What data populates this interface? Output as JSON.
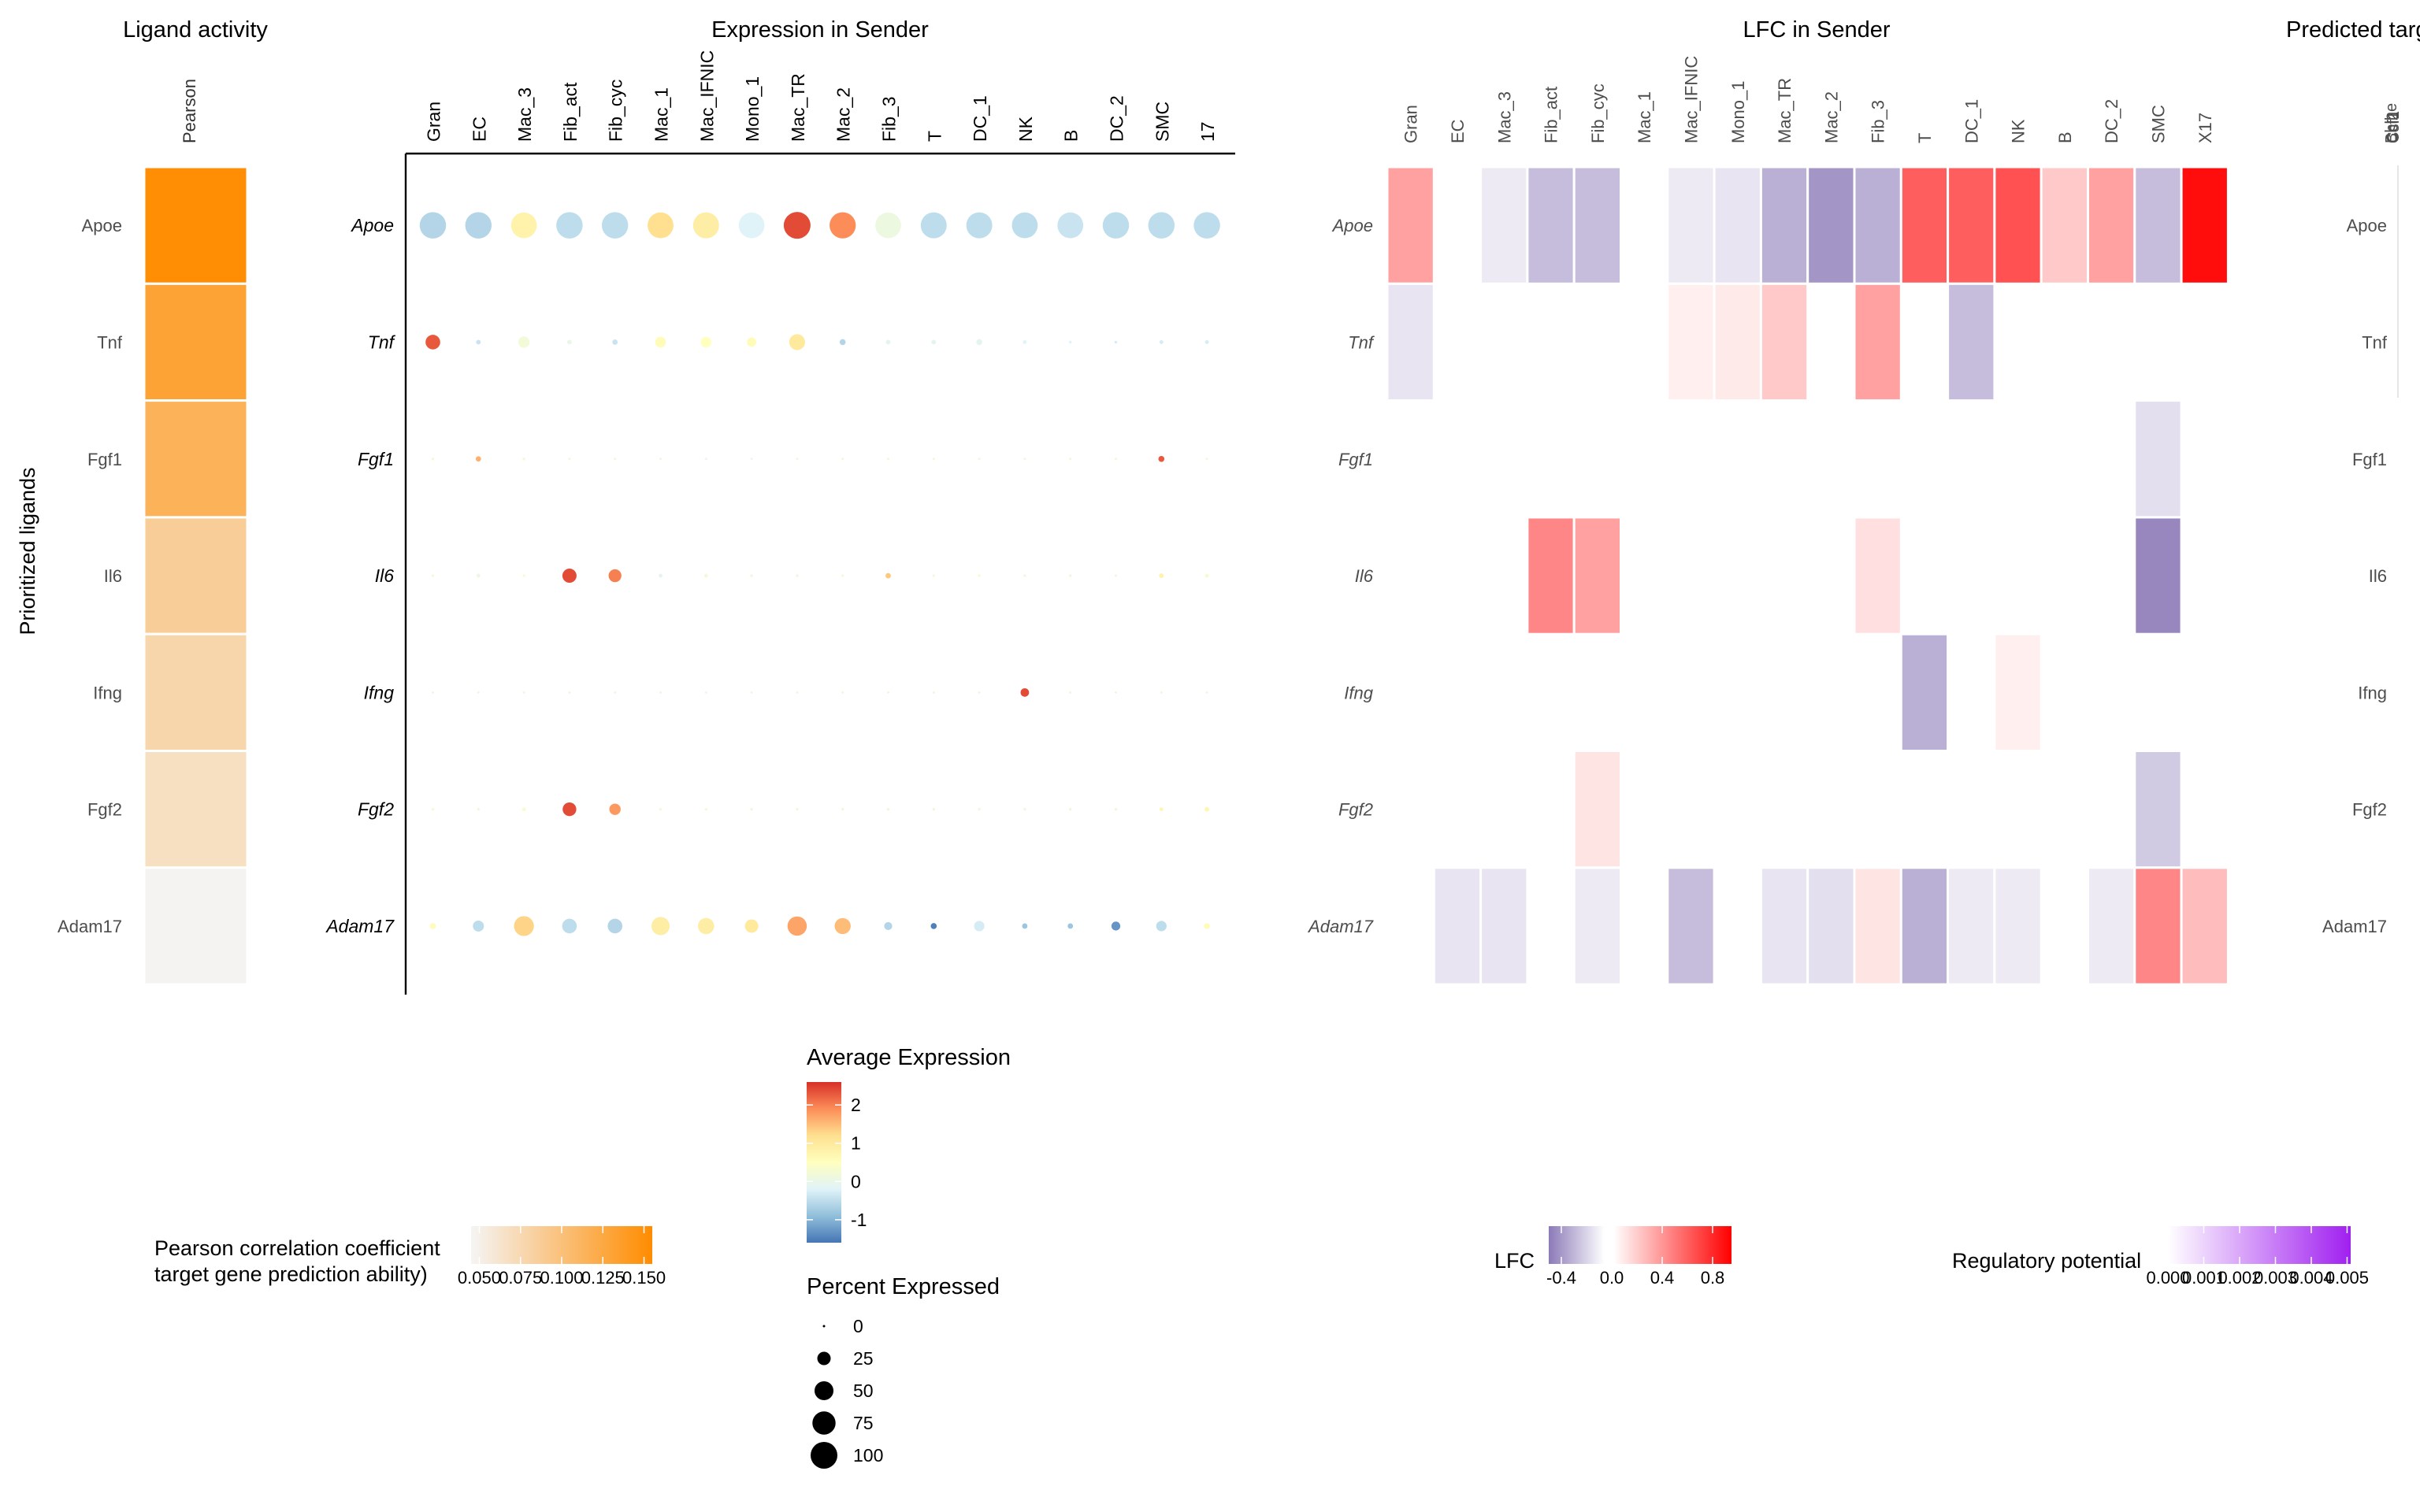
{
  "chart_data": [
    {
      "type": "heatmap",
      "title": "Ligand activity",
      "ylabel": "Prioritized ligands",
      "columns": [
        "Pearson"
      ],
      "rows": [
        "Apoe",
        "Tnf",
        "Fgf1",
        "Il6",
        "Ifng",
        "Fgf2",
        "Adam17"
      ],
      "values": [
        0.153,
        0.131,
        0.115,
        0.087,
        0.078,
        0.068,
        0.047
      ],
      "legend": {
        "title_lines": [
          "Pearson correlation coefficient",
          "target gene prediction ability)"
        ],
        "ticks": [
          "0.050",
          "0.075",
          "0.100",
          "0.125",
          "0.150"
        ],
        "tick_values": [
          0.05,
          0.075,
          0.1,
          0.125,
          0.15
        ],
        "range": [
          0.045,
          0.155
        ],
        "colors": [
          "#f5f5f5",
          "#ff8c00"
        ]
      }
    },
    {
      "type": "scatter",
      "title": "Expression in Sender",
      "columns": [
        "Gran",
        "EC",
        "Mac_3",
        "Fib_act",
        "Fib_cyc",
        "Mac_1",
        "Mac_IFNIC",
        "Mono_1",
        "Mac_TR",
        "Mac_2",
        "Fib_3",
        "T",
        "DC_1",
        "NK",
        "B",
        "DC_2",
        "SMC",
        "17"
      ],
      "rows": [
        "Apoe",
        "Tnf",
        "Fgf1",
        "Il6",
        "Ifng",
        "Fgf2",
        "Adam17"
      ],
      "avg_expression": [
        [
          -0.6,
          -0.6,
          0.8,
          -0.5,
          -0.5,
          1.2,
          0.9,
          -0.2,
          2.4,
          1.9,
          0.1,
          -0.5,
          -0.5,
          -0.5,
          -0.4,
          -0.5,
          -0.5,
          -0.5
        ],
        [
          2.3,
          -0.4,
          0.2,
          0.0,
          -0.4,
          0.6,
          0.5,
          0.6,
          1.0,
          -0.6,
          -0.1,
          -0.1,
          -0.1,
          -0.2,
          -0.2,
          -0.3,
          -0.3,
          -0.3
        ],
        [
          0.2,
          1.6,
          0.2,
          0.1,
          0.1,
          0.1,
          0.1,
          0.1,
          0.1,
          0.1,
          0.1,
          0.1,
          0.1,
          0.1,
          0.1,
          0.1,
          2.3,
          0.1
        ],
        [
          0.2,
          0.1,
          0.3,
          2.4,
          2.0,
          -0.1,
          0.2,
          0.1,
          0.1,
          0.2,
          1.4,
          0.2,
          0.3,
          0.1,
          0.1,
          0.1,
          0.8,
          0.3
        ],
        [
          0.1,
          0.1,
          0.1,
          0.1,
          0.1,
          0.1,
          0.1,
          0.1,
          0.1,
          0.1,
          0.1,
          0.1,
          0.1,
          2.4,
          0.1,
          0.1,
          0.1,
          0.1
        ],
        [
          0.2,
          0.1,
          0.3,
          2.4,
          1.8,
          0.2,
          0.2,
          0.1,
          0.1,
          0.1,
          0.1,
          0.1,
          0.1,
          0.1,
          0.1,
          0.1,
          0.7,
          0.7
        ],
        [
          0.6,
          -0.5,
          1.3,
          -0.5,
          -0.6,
          0.9,
          0.9,
          1.0,
          1.7,
          1.5,
          -0.6,
          -1.5,
          -0.3,
          -0.8,
          -0.8,
          -1.3,
          -0.5,
          0.6
        ]
      ],
      "pct_expressed": [
        [
          97,
          97,
          92,
          97,
          97,
          93,
          94,
          92,
          100,
          96,
          92,
          94,
          94,
          93,
          93,
          97,
          97,
          97
        ],
        [
          30,
          3,
          18,
          3,
          4,
          16,
          16,
          12,
          35,
          5,
          3,
          3,
          5,
          2,
          1,
          1,
          2,
          2
        ],
        [
          1,
          4,
          1,
          0,
          0,
          0,
          0,
          0,
          0,
          0,
          0,
          0,
          0,
          0,
          0,
          0,
          5,
          0
        ],
        [
          1,
          2,
          1,
          28,
          23,
          2,
          2,
          1,
          1,
          1,
          4,
          1,
          1,
          1,
          1,
          0,
          3,
          2
        ],
        [
          0,
          0,
          0,
          0,
          0,
          0,
          0,
          0,
          0,
          0,
          0,
          0,
          0,
          10,
          0,
          0,
          0,
          0
        ],
        [
          1,
          1,
          2,
          26,
          18,
          1,
          1,
          1,
          1,
          1,
          1,
          1,
          1,
          1,
          1,
          1,
          2,
          3
        ],
        [
          5,
          17,
          55,
          30,
          30,
          46,
          37,
          25,
          52,
          36,
          9,
          5,
          15,
          4,
          4,
          11,
          15,
          5
        ]
      ],
      "color_legend": {
        "title": "Average Expression",
        "ticks": [
          "2",
          "1",
          "0",
          "-1"
        ],
        "tick_values": [
          2,
          1,
          0,
          -1
        ],
        "range": [
          -1.6,
          2.6
        ],
        "colors": [
          "#4575b4",
          "#91bfdb",
          "#e0f3f8",
          "#ffffbf",
          "#fee090",
          "#fc8d59",
          "#d73027"
        ]
      },
      "size_legend": {
        "title": "Percent Expressed",
        "ticks": [
          "0",
          "25",
          "50",
          "75",
          "100"
        ],
        "tick_values": [
          0,
          25,
          50,
          75,
          100
        ]
      }
    },
    {
      "type": "heatmap",
      "title": "LFC in Sender",
      "columns": [
        "Gran",
        "EC",
        "Mac_3",
        "Fib_act",
        "Fib_cyc",
        "Mac_1",
        "Mac_IFNIC",
        "Mono_1",
        "Mac_TR",
        "Mac_2",
        "Fib_3",
        "T",
        "DC_1",
        "NK",
        "B",
        "DC_2",
        "SMC",
        "X17"
      ],
      "rows": [
        "Apoe",
        "Tnf",
        "Fgf1",
        "Il6",
        "Ifng",
        "Fgf2",
        "Adam17"
      ],
      "values": [
        [
          0.35,
          null,
          -0.08,
          -0.25,
          -0.25,
          null,
          -0.08,
          -0.1,
          -0.3,
          -0.4,
          -0.3,
          0.6,
          0.6,
          0.65,
          0.2,
          0.35,
          -0.25,
          0.9
        ],
        [
          -0.1,
          null,
          null,
          null,
          null,
          null,
          0.06,
          0.08,
          0.2,
          null,
          0.35,
          null,
          -0.25,
          null,
          null,
          null,
          null,
          null
        ],
        [
          null,
          null,
          null,
          null,
          null,
          null,
          null,
          null,
          null,
          null,
          null,
          null,
          null,
          null,
          null,
          null,
          -0.12,
          null
        ],
        [
          null,
          null,
          null,
          0.45,
          0.35,
          null,
          null,
          null,
          null,
          null,
          0.12,
          null,
          null,
          null,
          null,
          null,
          -0.45,
          null
        ],
        [
          null,
          null,
          null,
          null,
          null,
          null,
          null,
          null,
          null,
          null,
          null,
          -0.3,
          null,
          0.06,
          null,
          null,
          null,
          null
        ],
        [
          null,
          null,
          null,
          null,
          0.1,
          null,
          null,
          null,
          null,
          null,
          null,
          null,
          null,
          null,
          null,
          null,
          -0.2,
          null
        ],
        [
          null,
          -0.1,
          -0.1,
          null,
          -0.08,
          null,
          -0.25,
          null,
          -0.1,
          -0.12,
          0.1,
          -0.3,
          -0.08,
          -0.08,
          null,
          -0.08,
          0.45,
          0.25
        ]
      ],
      "legend": {
        "title": "LFC",
        "ticks": [
          "-0.4",
          "0.0",
          "0.4",
          "0.8"
        ],
        "tick_values": [
          -0.4,
          0.0,
          0.4,
          0.8
        ],
        "range": [
          -0.5,
          0.95
        ],
        "colors": [
          "#8c7ab8",
          "#ffffff",
          "#ff0000"
        ]
      }
    },
    {
      "type": "heatmap",
      "title": "Predicted targ",
      "rows": [
        "Apoe",
        "Tnf",
        "Fgf1",
        "Il6",
        "Ifng",
        "Fgf2",
        "Adam17"
      ],
      "column_labels_overlapped": [
        "Bhlhe",
        "Ccl2",
        "Csf1"
      ],
      "legend": {
        "title": "Regulatory potential",
        "ticks": [
          "0.000",
          "0.001",
          "0.002",
          "0.003",
          "0.004",
          "0.005"
        ],
        "tick_values": [
          0,
          0.001,
          0.002,
          0.003,
          0.004,
          0.005
        ],
        "range": [
          0,
          0.0051
        ],
        "colors": [
          "#ffffff",
          "#a020f0"
        ]
      }
    }
  ]
}
